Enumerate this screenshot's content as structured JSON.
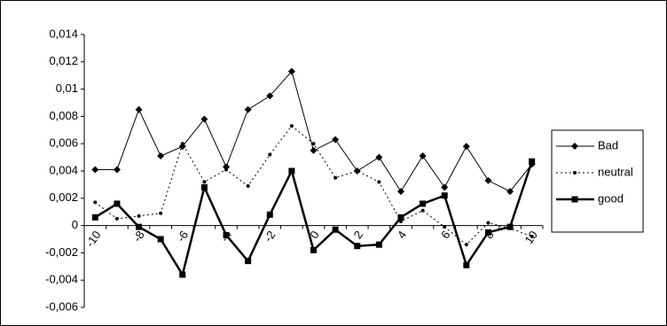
{
  "chart_data": {
    "type": "line",
    "categories": [
      -10,
      null,
      -8,
      null,
      -6,
      null,
      -4,
      null,
      -2,
      null,
      0,
      null,
      2,
      null,
      4,
      null,
      6,
      null,
      8,
      null,
      10
    ],
    "series": [
      {
        "name": "Bad",
        "color": "#000000",
        "marker": "diamond",
        "line_style": "solid",
        "line_width": 1,
        "values": [
          0.0041,
          0.0041,
          0.0085,
          0.0051,
          0.0058,
          0.0078,
          0.0043,
          0.0085,
          0.0095,
          0.0113,
          0.0055,
          0.0063,
          0.004,
          0.005,
          0.0025,
          0.0051,
          0.0028,
          0.0058,
          0.0033,
          0.0025,
          0.0045
        ]
      },
      {
        "name": "neutral",
        "color": "#000000",
        "marker": "dot",
        "line_style": "dotted",
        "line_width": 1,
        "values": [
          0.0017,
          0.0005,
          0.0007,
          0.0009,
          0.006,
          0.0032,
          0.0041,
          0.0029,
          0.0052,
          0.0073,
          0.006,
          0.0035,
          0.004,
          0.0032,
          0.0003,
          0.0011,
          -0.0001,
          -0.0014,
          0.0002,
          -0.0002,
          -0.0008
        ]
      },
      {
        "name": "good",
        "color": "#000000",
        "marker": "square",
        "line_style": "solid",
        "line_width": 2.5,
        "values": [
          0.0006,
          0.0016,
          -0.0001,
          -0.001,
          -0.0036,
          0.0028,
          -0.0007,
          -0.0026,
          0.0008,
          0.004,
          -0.0018,
          -0.0003,
          -0.0015,
          -0.0014,
          0.0006,
          0.0016,
          0.0022,
          -0.0029,
          -0.0005,
          -0.0001,
          0.0047
        ]
      }
    ],
    "ylim": [
      -0.006,
      0.014
    ],
    "yticks": [
      {
        "value": -0.006,
        "label": "-0,006"
      },
      {
        "value": -0.004,
        "label": "-0,004"
      },
      {
        "value": -0.002,
        "label": "-0,002"
      },
      0,
      {
        "value": 0.002,
        "label": "0,002"
      },
      {
        "value": 0.004,
        "label": "0,004"
      },
      {
        "value": 0.006,
        "label": "0,006"
      },
      {
        "value": 0.008,
        "label": "0,008"
      },
      {
        "value": 0.01,
        "label": "0,01"
      },
      {
        "value": 0.012,
        "label": "0,012"
      },
      {
        "value": 0.014,
        "label": "0,014"
      }
    ],
    "grid": false,
    "legend": "right"
  }
}
